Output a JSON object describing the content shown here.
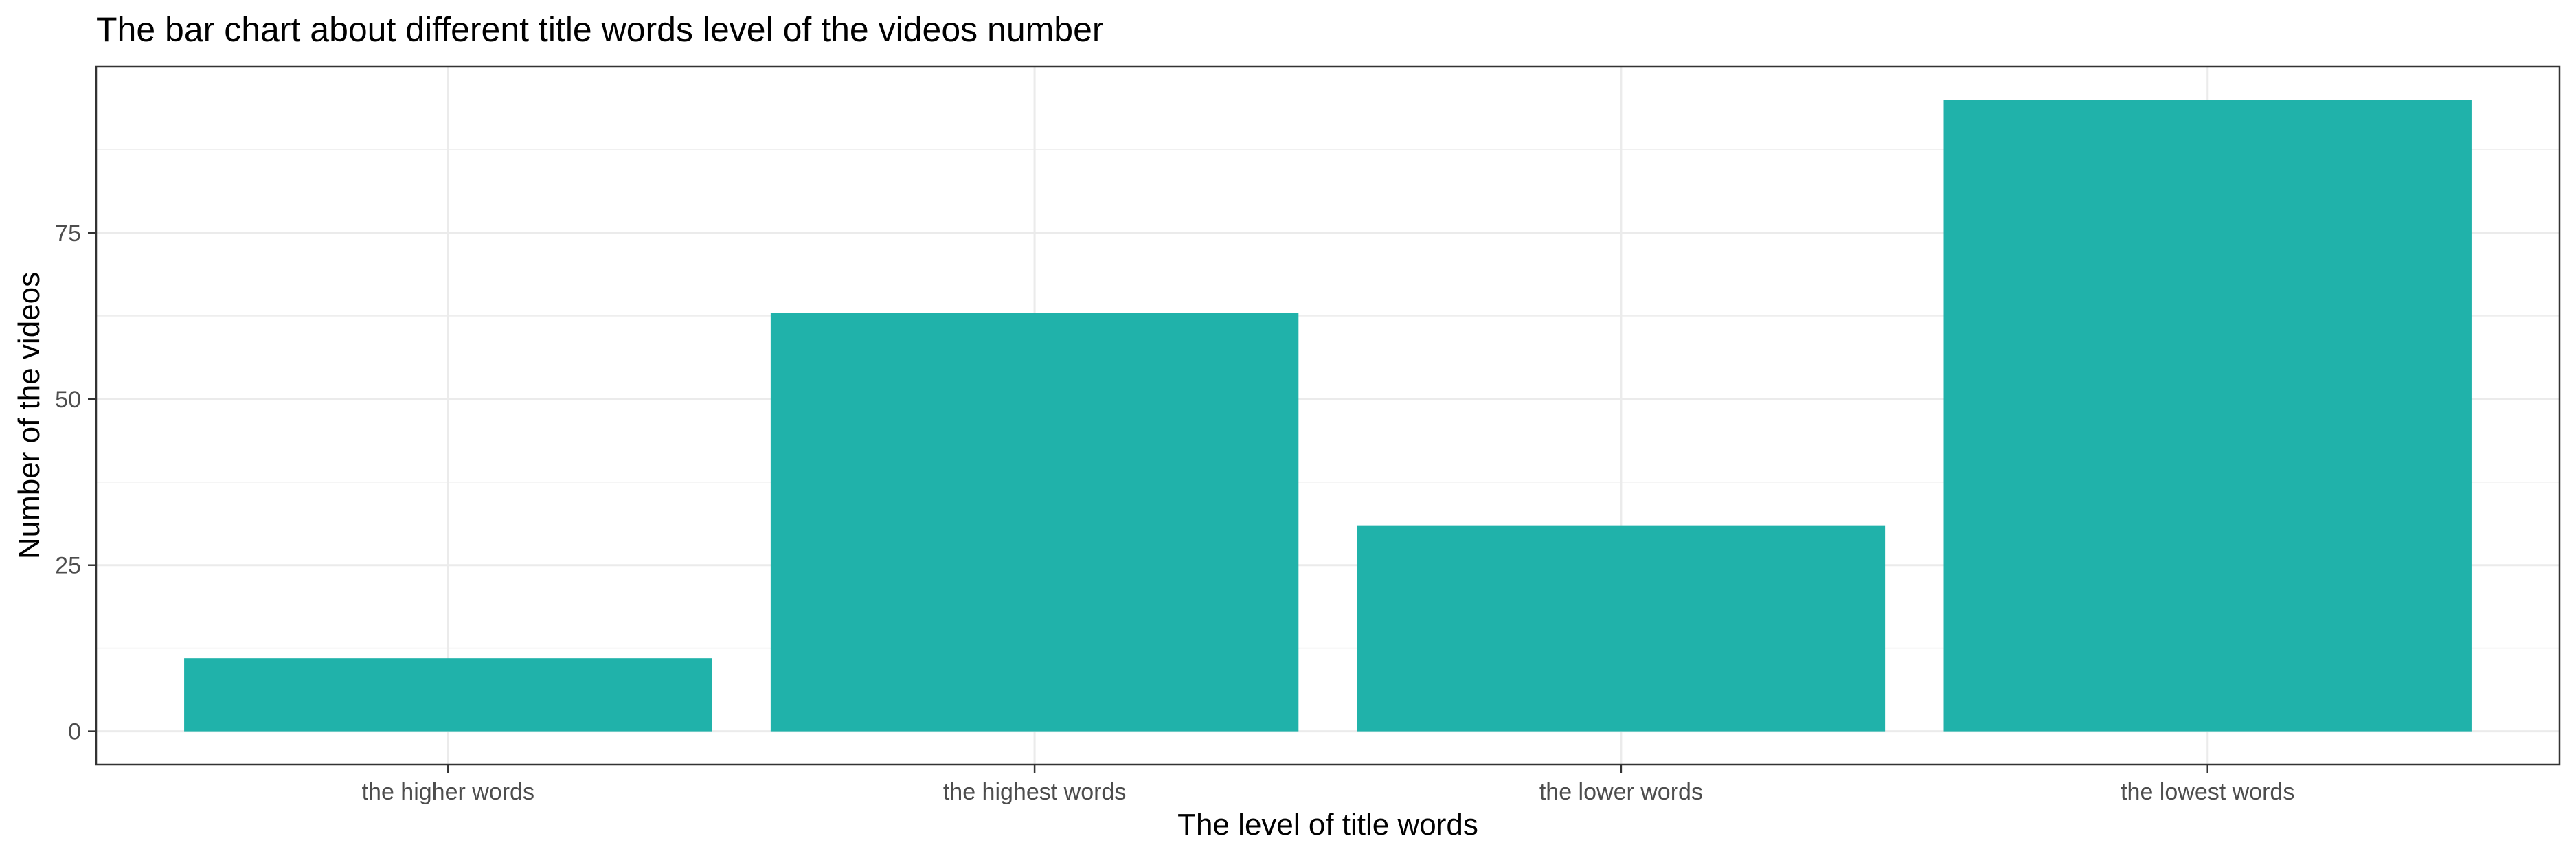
{
  "chart_data": {
    "type": "bar",
    "title": "The bar chart about different title words level of the videos number",
    "xlabel": "The level of title words",
    "ylabel": "Number of the videos",
    "categories": [
      "the higher words",
      "the highest words",
      "the lower words",
      "the lowest words"
    ],
    "values": [
      11,
      63,
      31,
      95
    ],
    "ylim": [
      -5,
      100
    ],
    "yticks": [
      0,
      25,
      50,
      75
    ],
    "ytick_labels": [
      "0",
      "25",
      "50",
      "75"
    ],
    "bar_color": "#20B2AA",
    "grid": true,
    "legend": false
  }
}
